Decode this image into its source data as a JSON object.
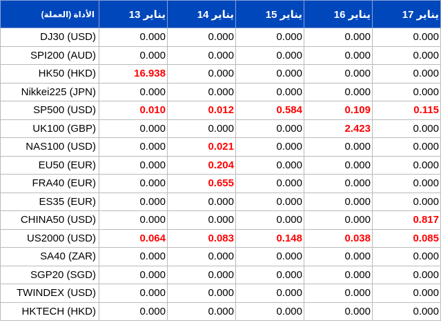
{
  "header": {
    "instrument_label": "الأداة (العملة)",
    "dates": [
      "13 يناير",
      "14 يناير",
      "15 يناير",
      "16 يناير",
      "17 يناير"
    ]
  },
  "highlight_color": "#ff0000",
  "header_color": "#0047bb",
  "rows": [
    {
      "name": "DJ30 (USD)",
      "values": [
        "0.000",
        "0.000",
        "0.000",
        "0.000",
        "0.000"
      ],
      "highlight": [
        false,
        false,
        false,
        false,
        false
      ]
    },
    {
      "name": "SPI200 (AUD)",
      "values": [
        "0.000",
        "0.000",
        "0.000",
        "0.000",
        "0.000"
      ],
      "highlight": [
        false,
        false,
        false,
        false,
        false
      ]
    },
    {
      "name": "HK50 (HKD)",
      "values": [
        "16.938",
        "0.000",
        "0.000",
        "0.000",
        "0.000"
      ],
      "highlight": [
        true,
        false,
        false,
        false,
        false
      ]
    },
    {
      "name": "Nikkei225 (JPN)",
      "values": [
        "0.000",
        "0.000",
        "0.000",
        "0.000",
        "0.000"
      ],
      "highlight": [
        false,
        false,
        false,
        false,
        false
      ]
    },
    {
      "name": "SP500 (USD)",
      "values": [
        "0.010",
        "0.012",
        "0.584",
        "0.109",
        "0.115"
      ],
      "highlight": [
        true,
        true,
        true,
        true,
        true
      ]
    },
    {
      "name": "UK100 (GBP)",
      "values": [
        "0.000",
        "0.000",
        "0.000",
        "2.423",
        "0.000"
      ],
      "highlight": [
        false,
        false,
        false,
        true,
        false
      ]
    },
    {
      "name": "NAS100 (USD)",
      "values": [
        "0.000",
        "0.021",
        "0.000",
        "0.000",
        "0.000"
      ],
      "highlight": [
        false,
        true,
        false,
        false,
        false
      ]
    },
    {
      "name": "EU50 (EUR)",
      "values": [
        "0.000",
        "0.204",
        "0.000",
        "0.000",
        "0.000"
      ],
      "highlight": [
        false,
        true,
        false,
        false,
        false
      ]
    },
    {
      "name": "FRA40 (EUR)",
      "values": [
        "0.000",
        "0.655",
        "0.000",
        "0.000",
        "0.000"
      ],
      "highlight": [
        false,
        true,
        false,
        false,
        false
      ]
    },
    {
      "name": "ES35 (EUR)",
      "values": [
        "0.000",
        "0.000",
        "0.000",
        "0.000",
        "0.000"
      ],
      "highlight": [
        false,
        false,
        false,
        false,
        false
      ]
    },
    {
      "name": "CHINA50 (USD)",
      "values": [
        "0.000",
        "0.000",
        "0.000",
        "0.000",
        "0.817"
      ],
      "highlight": [
        false,
        false,
        false,
        false,
        true
      ]
    },
    {
      "name": "US2000 (USD)",
      "values": [
        "0.064",
        "0.083",
        "0.148",
        "0.038",
        "0.085"
      ],
      "highlight": [
        true,
        true,
        true,
        true,
        true
      ]
    },
    {
      "name": "SA40 (ZAR)",
      "values": [
        "0.000",
        "0.000",
        "0.000",
        "0.000",
        "0.000"
      ],
      "highlight": [
        false,
        false,
        false,
        false,
        false
      ]
    },
    {
      "name": "SGP20 (SGD)",
      "values": [
        "0.000",
        "0.000",
        "0.000",
        "0.000",
        "0.000"
      ],
      "highlight": [
        false,
        false,
        false,
        false,
        false
      ]
    },
    {
      "name": "TWINDEX (USD)",
      "values": [
        "0.000",
        "0.000",
        "0.000",
        "0.000",
        "0.000"
      ],
      "highlight": [
        false,
        false,
        false,
        false,
        false
      ]
    },
    {
      "name": "HKTECH (HKD)",
      "values": [
        "0.000",
        "0.000",
        "0.000",
        "0.000",
        "0.000"
      ],
      "highlight": [
        false,
        false,
        false,
        false,
        false
      ]
    }
  ]
}
